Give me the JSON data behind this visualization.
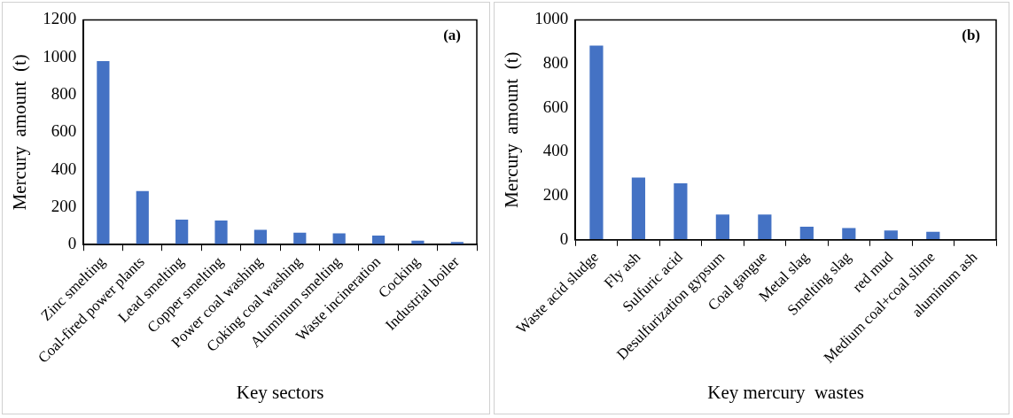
{
  "chart_data": [
    {
      "type": "bar",
      "xlabel": "Key sectors",
      "ylabel": "Mercury  amount  (t)",
      "annotations": [
        "(a)"
      ],
      "categories": [
        "Zinc smelting",
        "Coal-fired power plants",
        "Lead smelting",
        "Copper smelting",
        "Power coal washing",
        "Coking coal washing",
        "Aluminum smelting",
        "Waste incineration",
        "Cocking",
        "Industrial boiler"
      ],
      "values": [
        980,
        286,
        133,
        129,
        79,
        64,
        60,
        48,
        21,
        14
      ],
      "color": "#4472c4",
      "ylim": [
        0,
        1200
      ],
      "yticks": [
        0,
        200,
        400,
        600,
        800,
        1000,
        1200
      ],
      "grid": false,
      "legend": false
    },
    {
      "type": "bar",
      "xlabel": "Key mercury  wastes",
      "ylabel": "Mercury  amount  (t)",
      "annotations": [
        "(b)"
      ],
      "categories": [
        "Waste acid sludge",
        "Fly ash",
        "Sulfuric acid",
        "Desulfurization gypsum",
        "Coal gangue",
        "Metal slag",
        "Smelting slag",
        "red mud",
        "Medium coal+coal slime",
        "aluminum ash"
      ],
      "values": [
        883,
        283,
        257,
        115,
        115,
        59,
        53,
        42,
        36,
        0
      ],
      "color": "#4472c4",
      "ylim": [
        0,
        1000
      ],
      "yticks": [
        0,
        200,
        400,
        600,
        800,
        1000
      ],
      "grid": false,
      "legend": false
    }
  ]
}
